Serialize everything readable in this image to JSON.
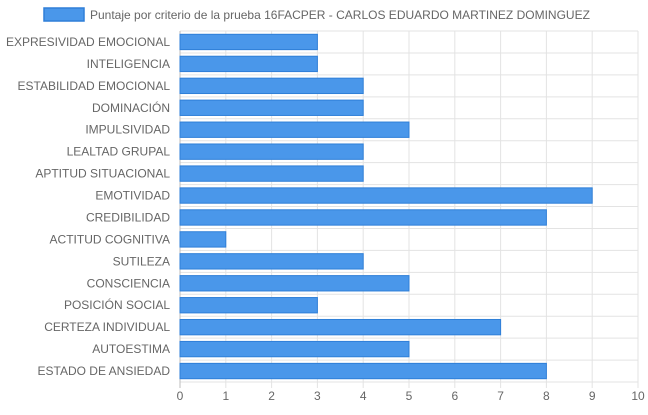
{
  "chart_data": {
    "type": "bar",
    "orientation": "horizontal",
    "categories": [
      "EXPRESIVIDAD EMOCIONAL",
      "INTELIGENCIA",
      "ESTABILIDAD EMOCIONAL",
      "DOMINACIÓN",
      "IMPULSIVIDAD",
      "LEALTAD GRUPAL",
      "APTITUD SITUACIONAL",
      "EMOTIVIDAD",
      "CREDIBILIDAD",
      "ACTITUD COGNITIVA",
      "SUTILEZA",
      "CONSCIENCIA",
      "POSICIÓN SOCIAL",
      "CERTEZA INDIVIDUAL",
      "AUTOESTIMA",
      "ESTADO DE ANSIEDAD"
    ],
    "series": [
      {
        "name": "Puntaje por criterio de la prueba 16FACPER - CARLOS EDUARDO MARTINEZ DOMINGUEZ",
        "values": [
          3,
          3,
          4,
          4,
          5,
          4,
          4,
          9,
          8,
          1,
          4,
          5,
          3,
          7,
          5,
          8
        ],
        "color": "#4a97ea",
        "border_color": "#2f7fd8"
      }
    ],
    "xlim": [
      0,
      10
    ],
    "xticks": [
      0,
      1,
      2,
      3,
      4,
      5,
      6,
      7,
      8,
      9,
      10
    ],
    "grid": true,
    "legend_position": "top"
  }
}
